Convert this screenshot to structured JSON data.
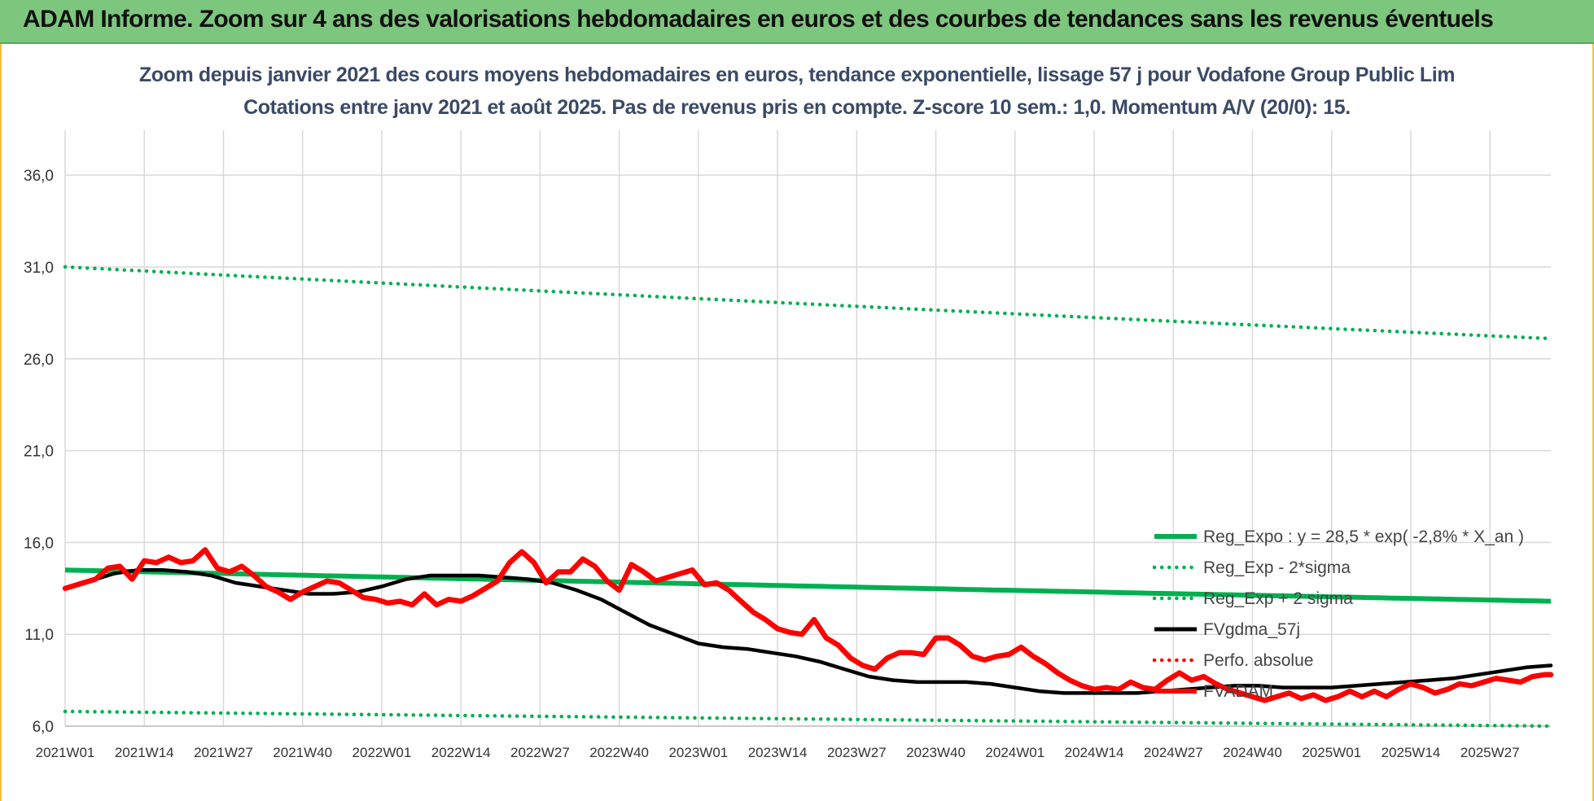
{
  "header": {
    "banner_title": "ADAM Informe. Zoom sur 4 ans des valorisations hebdomadaires en euros et des courbes de tendances sans les revenus éventuels"
  },
  "chart_data": {
    "type": "line",
    "title_line1": "Zoom depuis janvier 2021 des cours moyens hebdomadaires en euros, tendance exponentielle, lissage 57 j pour Vodafone Group Public Lim",
    "title_line2": "Cotations entre janv 2021 et août 2025.  Pas de revenus pris en compte. Z-score 10 sem.: 1,0. Momentum A/V (20/0): 15.",
    "ylim": [
      6.0,
      38.0
    ],
    "y_ticks": [
      "6,0",
      "11,0",
      "16,0",
      "21,0",
      "26,0",
      "31,0",
      "36,0"
    ],
    "y_tick_values": [
      6,
      11,
      16,
      21,
      26,
      31,
      36
    ],
    "x_ticks": [
      "2021W01",
      "2021W14",
      "2021W27",
      "2021W40",
      "2022W01",
      "2022W14",
      "2022W27",
      "2022W40",
      "2023W01",
      "2023W14",
      "2023W27",
      "2023W40",
      "2024W01",
      "2024W14",
      "2024W27",
      "2024W40",
      "2025W01",
      "2025W14",
      "2025W27"
    ],
    "week_count": 245,
    "grid": true,
    "legend_position": "bottom-right",
    "series": [
      {
        "name": "Reg_Expo : y = 28,5 * exp( -2,8% *  X_an )",
        "color": "#00b050",
        "style": "solid",
        "start": 14.5,
        "end": 12.8
      },
      {
        "name": "Reg_Exp - 2*sigma",
        "color": "#00b050",
        "style": "dotted",
        "start": 6.8,
        "end": 6.0
      },
      {
        "name": "Reg_Exp + 2 sigma",
        "color": "#00b050",
        "style": "dotted",
        "start": 31.0,
        "end": 27.1
      },
      {
        "name": "FVgdma_57j",
        "color": "#000000",
        "style": "solid",
        "points": [
          [
            0,
            13.5
          ],
          [
            4,
            13.9
          ],
          [
            8,
            14.3
          ],
          [
            12,
            14.5
          ],
          [
            16,
            14.5
          ],
          [
            20,
            14.4
          ],
          [
            24,
            14.2
          ],
          [
            28,
            13.8
          ],
          [
            32,
            13.6
          ],
          [
            36,
            13.4
          ],
          [
            40,
            13.2
          ],
          [
            44,
            13.2
          ],
          [
            48,
            13.3
          ],
          [
            52,
            13.6
          ],
          [
            56,
            14.0
          ],
          [
            60,
            14.2
          ],
          [
            64,
            14.2
          ],
          [
            68,
            14.2
          ],
          [
            72,
            14.1
          ],
          [
            76,
            14.0
          ],
          [
            80,
            13.8
          ],
          [
            84,
            13.4
          ],
          [
            88,
            12.9
          ],
          [
            92,
            12.2
          ],
          [
            96,
            11.5
          ],
          [
            100,
            11.0
          ],
          [
            104,
            10.5
          ],
          [
            108,
            10.3
          ],
          [
            112,
            10.2
          ],
          [
            116,
            10.0
          ],
          [
            120,
            9.8
          ],
          [
            124,
            9.5
          ],
          [
            128,
            9.1
          ],
          [
            132,
            8.7
          ],
          [
            136,
            8.5
          ],
          [
            140,
            8.4
          ],
          [
            144,
            8.4
          ],
          [
            148,
            8.4
          ],
          [
            152,
            8.3
          ],
          [
            156,
            8.1
          ],
          [
            160,
            7.9
          ],
          [
            164,
            7.8
          ],
          [
            168,
            7.8
          ],
          [
            172,
            7.8
          ],
          [
            176,
            7.8
          ],
          [
            180,
            7.9
          ],
          [
            184,
            8.0
          ],
          [
            188,
            8.1
          ],
          [
            192,
            8.2
          ],
          [
            196,
            8.2
          ],
          [
            200,
            8.1
          ],
          [
            204,
            8.1
          ],
          [
            208,
            8.1
          ],
          [
            212,
            8.2
          ],
          [
            216,
            8.3
          ],
          [
            220,
            8.4
          ],
          [
            224,
            8.5
          ],
          [
            228,
            8.6
          ],
          [
            232,
            8.8
          ],
          [
            236,
            9.0
          ],
          [
            240,
            9.2
          ],
          [
            244,
            9.3
          ]
        ]
      },
      {
        "name": "Perfo. absolue",
        "color": "#ff0000",
        "style": "dotted",
        "points": []
      },
      {
        "name": "FVADAM",
        "color": "#ff0000",
        "style": "solid",
        "points": [
          [
            0,
            13.5
          ],
          [
            3,
            13.8
          ],
          [
            5,
            14.0
          ],
          [
            7,
            14.6
          ],
          [
            9,
            14.7
          ],
          [
            11,
            14.0
          ],
          [
            13,
            15.0
          ],
          [
            15,
            14.9
          ],
          [
            17,
            15.2
          ],
          [
            19,
            14.9
          ],
          [
            21,
            15.0
          ],
          [
            23,
            15.6
          ],
          [
            25,
            14.6
          ],
          [
            27,
            14.4
          ],
          [
            29,
            14.7
          ],
          [
            31,
            14.2
          ],
          [
            33,
            13.6
          ],
          [
            35,
            13.3
          ],
          [
            37,
            12.9
          ],
          [
            39,
            13.3
          ],
          [
            41,
            13.6
          ],
          [
            43,
            13.9
          ],
          [
            45,
            13.8
          ],
          [
            47,
            13.4
          ],
          [
            49,
            13.0
          ],
          [
            51,
            12.9
          ],
          [
            53,
            12.7
          ],
          [
            55,
            12.8
          ],
          [
            57,
            12.6
          ],
          [
            59,
            13.2
          ],
          [
            61,
            12.6
          ],
          [
            63,
            12.9
          ],
          [
            65,
            12.8
          ],
          [
            67,
            13.1
          ],
          [
            69,
            13.5
          ],
          [
            71,
            13.9
          ],
          [
            73,
            14.9
          ],
          [
            75,
            15.5
          ],
          [
            77,
            14.9
          ],
          [
            79,
            13.8
          ],
          [
            81,
            14.4
          ],
          [
            83,
            14.4
          ],
          [
            85,
            15.1
          ],
          [
            87,
            14.7
          ],
          [
            89,
            13.9
          ],
          [
            91,
            13.4
          ],
          [
            93,
            14.8
          ],
          [
            95,
            14.4
          ],
          [
            97,
            13.9
          ],
          [
            99,
            14.1
          ],
          [
            101,
            14.3
          ],
          [
            103,
            14.5
          ],
          [
            105,
            13.7
          ],
          [
            107,
            13.8
          ],
          [
            109,
            13.4
          ],
          [
            111,
            12.8
          ],
          [
            113,
            12.2
          ],
          [
            115,
            11.8
          ],
          [
            117,
            11.3
          ],
          [
            119,
            11.1
          ],
          [
            121,
            11.0
          ],
          [
            123,
            11.8
          ],
          [
            125,
            10.8
          ],
          [
            127,
            10.4
          ],
          [
            129,
            9.7
          ],
          [
            131,
            9.3
          ],
          [
            133,
            9.1
          ],
          [
            135,
            9.7
          ],
          [
            137,
            10.0
          ],
          [
            139,
            10.0
          ],
          [
            141,
            9.9
          ],
          [
            143,
            10.8
          ],
          [
            145,
            10.8
          ],
          [
            147,
            10.4
          ],
          [
            149,
            9.8
          ],
          [
            151,
            9.6
          ],
          [
            153,
            9.8
          ],
          [
            155,
            9.9
          ],
          [
            157,
            10.3
          ],
          [
            159,
            9.8
          ],
          [
            161,
            9.4
          ],
          [
            163,
            8.9
          ],
          [
            165,
            8.5
          ],
          [
            167,
            8.2
          ],
          [
            169,
            8.0
          ],
          [
            171,
            8.1
          ],
          [
            173,
            8.0
          ],
          [
            175,
            8.4
          ],
          [
            177,
            8.1
          ],
          [
            179,
            8.0
          ],
          [
            181,
            8.5
          ],
          [
            183,
            8.9
          ],
          [
            185,
            8.5
          ],
          [
            187,
            8.7
          ],
          [
            189,
            8.3
          ],
          [
            191,
            8.0
          ],
          [
            193,
            7.8
          ],
          [
            195,
            7.6
          ],
          [
            197,
            7.4
          ],
          [
            199,
            7.6
          ],
          [
            201,
            7.8
          ],
          [
            203,
            7.5
          ],
          [
            205,
            7.7
          ],
          [
            207,
            7.4
          ],
          [
            209,
            7.6
          ],
          [
            211,
            7.9
          ],
          [
            213,
            7.6
          ],
          [
            215,
            7.9
          ],
          [
            217,
            7.6
          ],
          [
            219,
            8.0
          ],
          [
            221,
            8.3
          ],
          [
            223,
            8.1
          ],
          [
            225,
            7.8
          ],
          [
            227,
            8.0
          ],
          [
            229,
            8.3
          ],
          [
            231,
            8.2
          ],
          [
            233,
            8.4
          ],
          [
            235,
            8.6
          ],
          [
            237,
            8.5
          ],
          [
            239,
            8.4
          ],
          [
            241,
            8.7
          ],
          [
            243,
            8.8
          ],
          [
            244,
            8.8
          ]
        ]
      }
    ]
  }
}
